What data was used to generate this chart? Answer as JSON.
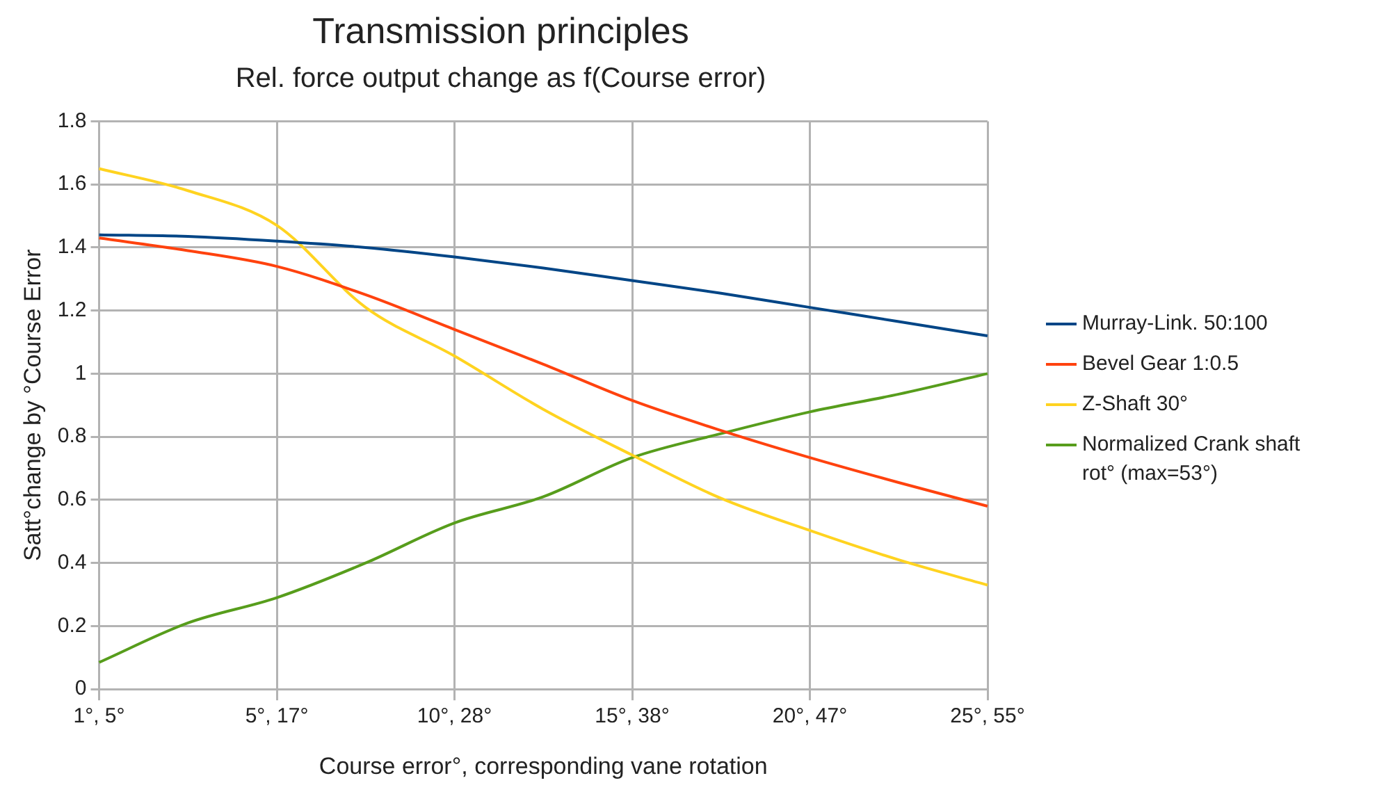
{
  "chart_data": {
    "type": "line",
    "title": "Transmission principles",
    "subtitle": "Rel. force output change as f(Course error)",
    "xlabel": "Course error°, corresponding vane rotation",
    "ylabel": "Satt°change by °Course Error",
    "categories": [
      "1°, 5°",
      null,
      "5°, 17°",
      null,
      "10°, 28°",
      null,
      "15°, 38°",
      null,
      "20°, 47°",
      null,
      "25°, 55°"
    ],
    "series": [
      {
        "name": "Murray-Link. 50:100",
        "color": "#004586",
        "values": [
          1.44,
          1.435,
          1.42,
          1.4,
          1.37,
          1.335,
          1.295,
          1.255,
          1.21,
          1.165,
          1.12
        ]
      },
      {
        "name": "Bevel Gear 1:0.5",
        "color": "#ff420e",
        "values": [
          1.43,
          1.39,
          1.34,
          1.25,
          1.14,
          1.03,
          0.915,
          0.82,
          0.734,
          0.655,
          0.58
        ]
      },
      {
        "name": "Z-Shaft 30°",
        "color": "#ffd320",
        "values": [
          1.65,
          1.58,
          1.47,
          1.21,
          1.056,
          0.887,
          0.742,
          0.605,
          0.503,
          0.41,
          0.33
        ]
      },
      {
        "name": "Normalized Crank shaft rot° (max=53°)",
        "color": "#579d1c",
        "values": [
          0.085,
          0.21,
          0.29,
          0.4,
          0.527,
          0.61,
          0.734,
          0.81,
          0.879,
          0.935,
          1.0
        ]
      }
    ],
    "ylim": [
      0,
      1.8
    ],
    "yticks": [
      0,
      0.2,
      0.4,
      0.6,
      0.8,
      1,
      1.2,
      1.4,
      1.6,
      1.8
    ],
    "grid": true,
    "legend": "right",
    "marker": "none",
    "line_style": "solid"
  }
}
